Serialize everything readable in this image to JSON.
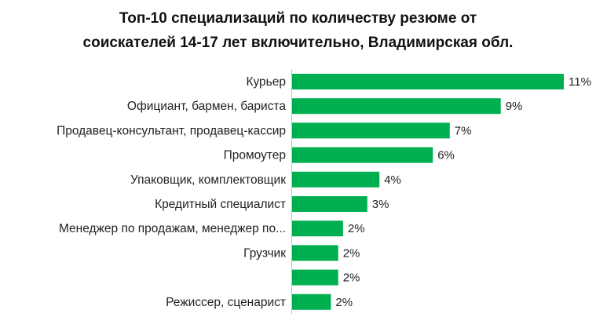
{
  "chart_data": {
    "type": "bar",
    "orientation": "horizontal",
    "title_lines": [
      "Топ-10 специализаций по количеству резюме от",
      "соискателей 14-17 лет включительно, Владимирская обл."
    ],
    "categories": [
      "Курьер",
      "Официант, бармен, бариста",
      "Продавец-консультант, продавец-кассир",
      "Промоутер",
      "Упаковщик, комплектовщик",
      "Кредитный специалист",
      "Менеджер по продажам, менеджер по...",
      "Грузчик",
      "",
      "Режиссер, сценарист"
    ],
    "values": [
      11,
      9,
      7,
      6,
      4,
      3,
      2,
      2,
      2,
      2
    ],
    "value_labels": [
      "11%",
      "9%",
      "7%",
      "6%",
      "4%",
      "3%",
      "2%",
      "2%",
      "2%",
      "2%"
    ],
    "bar_values_precise": [
      11.2,
      8.6,
      6.5,
      5.8,
      3.6,
      3.1,
      2.1,
      1.9,
      1.9,
      1.6
    ],
    "unit": "%",
    "xlim": [
      0,
      11.2
    ],
    "grid": false,
    "legend": "none",
    "bar_color": "#00b050",
    "axis_color": "#bfbfbf"
  }
}
